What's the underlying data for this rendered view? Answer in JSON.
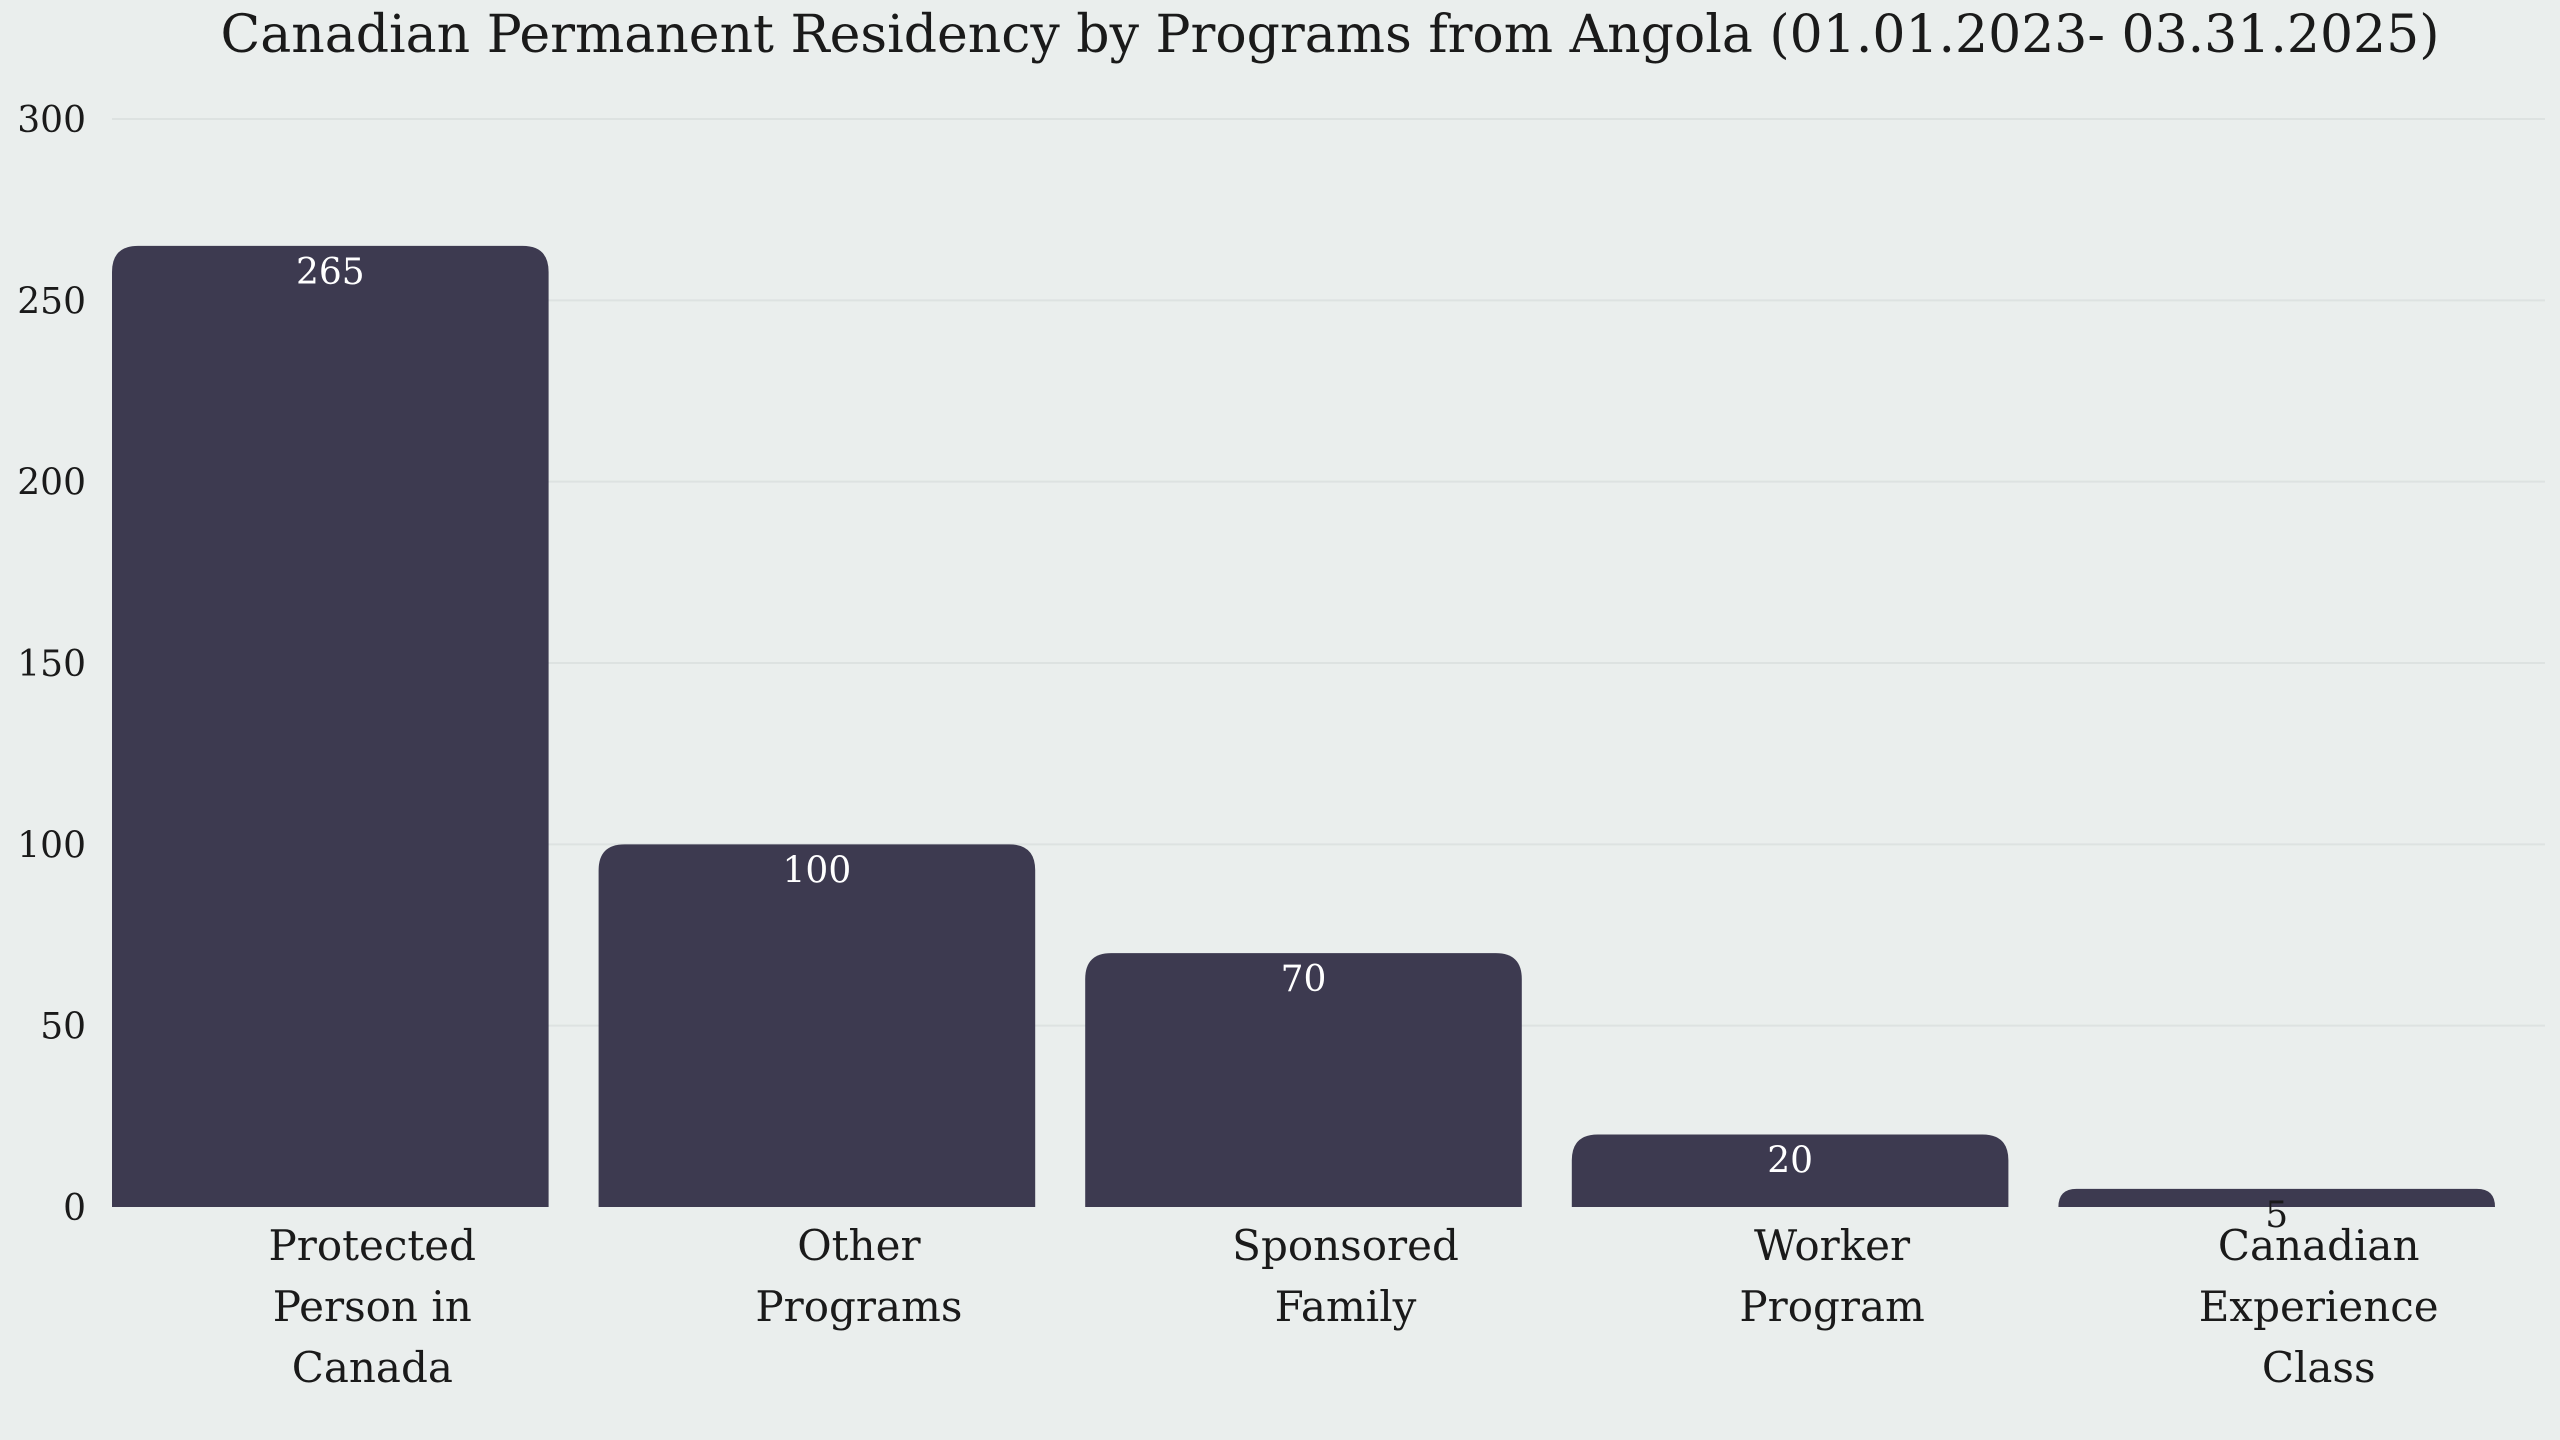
{
  "chart_data": {
    "type": "bar",
    "title": "Canadian Permanent Residency by Programs from Angola (01.01.2023- 03.31.2025)",
    "xlabel": "",
    "ylabel": "",
    "categories": [
      "Protected Person in Canada",
      "Other Programs",
      "Sponsored Family",
      "Worker Program",
      "Canadian Experience Class"
    ],
    "category_lines": [
      [
        "Protected",
        "Person in",
        "Canada"
      ],
      [
        "Other",
        "Programs"
      ],
      [
        "Sponsored",
        "Family"
      ],
      [
        "Worker",
        "Program"
      ],
      [
        "Canadian",
        "Experience",
        "Class"
      ]
    ],
    "values": [
      265,
      100,
      70,
      20,
      5
    ],
    "value_labels": [
      "265",
      "100",
      "70",
      "20",
      "5"
    ],
    "ylim": [
      0,
      300
    ],
    "yticks": [
      0,
      50,
      100,
      150,
      200,
      250,
      300
    ],
    "ytick_labels": [
      "0",
      "50",
      "100",
      "150",
      "200",
      "250",
      "300"
    ],
    "grid": true,
    "legend": "none"
  },
  "colors": {
    "background": "#eaeeed",
    "bar": "#3d3a50",
    "bar_label_inside": "#ffffff",
    "bar_label_outside": "#1a1a1a",
    "text": "#1a1a1a",
    "grid": "#dde2e1"
  }
}
